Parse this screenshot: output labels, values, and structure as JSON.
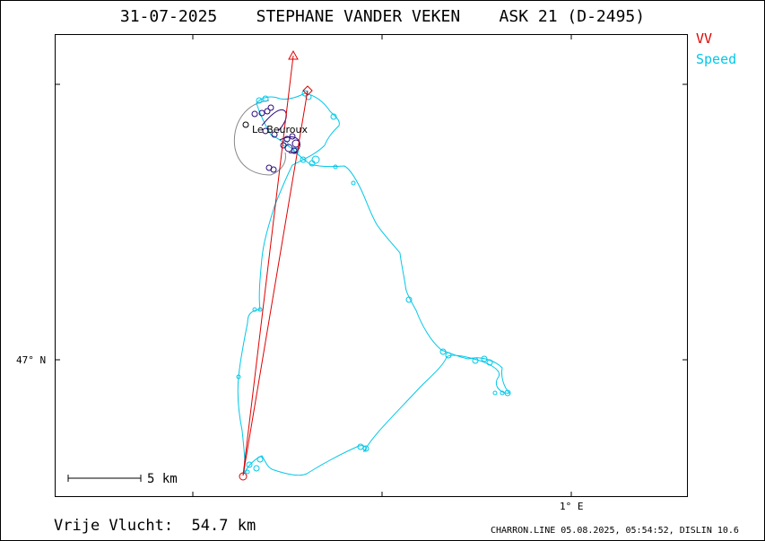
{
  "header": {
    "date": "31-07-2025",
    "pilot": "STEPHANE VANDER VEKEN",
    "glider": "ASK 21 (D-2495)"
  },
  "legend": {
    "items": [
      {
        "label": "VV",
        "color": "#e00000"
      },
      {
        "label": "Speed",
        "color": "#00c8e8"
      }
    ]
  },
  "axes": {
    "lat_label": "47° N",
    "lon_label": "1° E"
  },
  "scale_bar": {
    "label": "5 km"
  },
  "map": {
    "town_label": "Le Beuroux",
    "colors": {
      "track": "#00c8e8",
      "task": "#e00000",
      "circling": "#2a0a7a",
      "outline": "#888888"
    }
  },
  "footer": {
    "free_flight_label": "Vrije Vlucht:",
    "free_flight_value": "54.7 km",
    "credits": "CHARRON.LINE 05.08.2025, 05:54:52, DISLIN 10.6"
  }
}
